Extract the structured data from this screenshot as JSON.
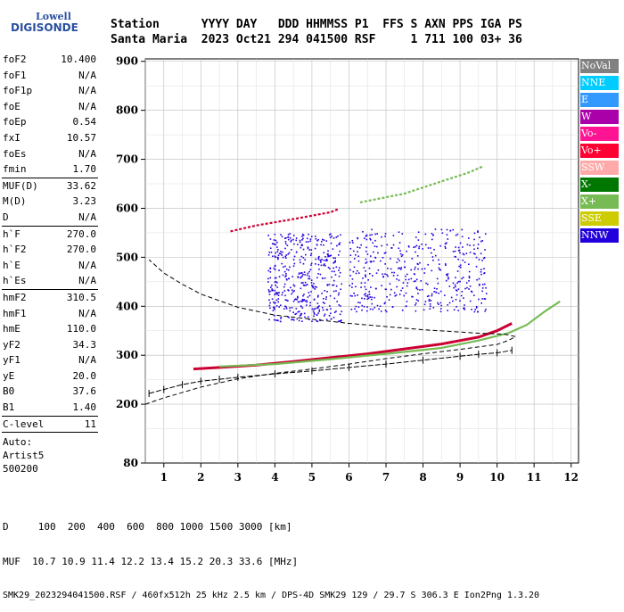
{
  "logo": {
    "line1": "Lowell",
    "line2": "DIGISONDE"
  },
  "header": {
    "row1": "Station      YYYY DAY   DDD HHMMSS P1  FFS S AXN PPS IGA PS",
    "row2": "Santa Maria  2023 Oct21 294 041500 RSF     1 711 100 03+ 36"
  },
  "params": {
    "group1": [
      {
        "label": "foF2",
        "value": "10.400"
      },
      {
        "label": "foF1",
        "value": "N/A"
      },
      {
        "label": "foF1p",
        "value": "N/A"
      },
      {
        "label": "foE",
        "value": "N/A"
      },
      {
        "label": "foEp",
        "value": "0.54"
      },
      {
        "label": "fxI",
        "value": "10.57"
      },
      {
        "label": "foEs",
        "value": "N/A"
      },
      {
        "label": "fmin",
        "value": "1.70"
      }
    ],
    "group2": [
      {
        "label": "MUF(D)",
        "value": "33.62"
      },
      {
        "label": "M(D)",
        "value": "3.23"
      },
      {
        "label": "D",
        "value": "N/A"
      }
    ],
    "group3": [
      {
        "label": "h`F",
        "value": "270.0"
      },
      {
        "label": "h`F2",
        "value": "270.0"
      },
      {
        "label": "h`E",
        "value": "N/A"
      },
      {
        "label": "h`Es",
        "value": "N/A"
      }
    ],
    "group4": [
      {
        "label": "hmF2",
        "value": "310.5"
      },
      {
        "label": "hmF1",
        "value": "N/A"
      },
      {
        "label": "hmE",
        "value": "110.0"
      },
      {
        "label": "yF2",
        "value": "34.3"
      },
      {
        "label": "yF1",
        "value": "N/A"
      },
      {
        "label": "yE",
        "value": "20.0"
      },
      {
        "label": "B0",
        "value": "37.6"
      },
      {
        "label": "B1",
        "value": "1.40"
      }
    ],
    "group5": [
      {
        "label": "C-level",
        "value": "11"
      }
    ],
    "auto": [
      "Auto:",
      "Artist5",
      "500200"
    ]
  },
  "legend": [
    {
      "label": "NoVal",
      "color": "#808080"
    },
    {
      "label": "NNE",
      "color": "#00ccff"
    },
    {
      "label": "E",
      "color": "#3399ff"
    },
    {
      "label": "W",
      "color": "#aa00aa"
    },
    {
      "label": "Vo-",
      "color": "#ff1493"
    },
    {
      "label": "Vo+",
      "color": "#ff0033"
    },
    {
      "label": "SSW",
      "color": "#ffaaaa"
    },
    {
      "label": "X-",
      "color": "#007700"
    },
    {
      "label": "X+",
      "color": "#77bb55"
    },
    {
      "label": "SSE",
      "color": "#cccc00"
    },
    {
      "label": "NNW",
      "color": "#2200dd"
    }
  ],
  "footer": {
    "line1": "D     100  200  400  600  800 1000 1500 3000 [km]",
    "line2": "MUF  10.7 10.9 11.4 12.2 13.4 15.2 20.3 33.6 [MHz]",
    "line3": "SMK29_2023294041500.RSF / 460fx512h 25 kHz 2.5 km / DPS-4D SMK29 129 / 29.7 S 306.3 E Ion2Png 1.3.20"
  },
  "chart_data": {
    "type": "scatter",
    "xlim": [
      0.5,
      12.2
    ],
    "ylim": [
      80,
      905
    ],
    "x_ticks": [
      1,
      2,
      3,
      4,
      5,
      6,
      7,
      8,
      9,
      10,
      11,
      12
    ],
    "y_ticks": [
      80,
      200,
      300,
      400,
      500,
      600,
      700,
      800,
      900
    ],
    "grid": true,
    "series": [
      {
        "kind": "o-trace",
        "color": "#cc0033",
        "x": [
          1.8,
          2.5,
          3.5,
          4.5,
          5.5,
          6.5,
          7.5,
          8.5,
          9.5,
          10.0,
          10.4
        ],
        "y": [
          272,
          275,
          280,
          287,
          295,
          303,
          313,
          323,
          337,
          350,
          365
        ]
      },
      {
        "kind": "x-trace",
        "color": "#77bb55",
        "x": [
          2.5,
          4.0,
          5.5,
          7.0,
          8.5,
          9.5,
          10.3,
          10.8,
          11.3,
          11.7
        ],
        "y": [
          277,
          282,
          292,
          303,
          315,
          330,
          345,
          362,
          390,
          410
        ]
      },
      {
        "kind": "multi-hop",
        "color": "#cc0033",
        "x": [
          2.8,
          3.5,
          4.5,
          5.5,
          5.7
        ],
        "y": [
          553,
          565,
          578,
          592,
          598
        ]
      },
      {
        "kind": "multi-hop-x",
        "color": "#77bb55",
        "x": [
          6.3,
          7.5,
          8.5,
          9.2,
          9.6
        ],
        "y": [
          612,
          630,
          655,
          672,
          685
        ]
      },
      {
        "kind": "profile-hplus",
        "color": "#000000",
        "x": [
          0.6,
          1.0,
          1.5,
          2.0,
          2.5,
          3.0,
          4.0,
          5.0,
          6.0,
          7.0,
          8.0,
          9.0,
          9.5,
          10.0,
          10.4
        ],
        "y": [
          222,
          230,
          240,
          247,
          251,
          255,
          262,
          268,
          275,
          282,
          290,
          298,
          302,
          305,
          310
        ]
      },
      {
        "kind": "profile-dashed",
        "color": "#000000",
        "x": [
          0.5,
          1.0,
          2.0,
          3.0,
          4.0,
          5.0,
          6.0,
          7.0,
          8.0,
          9.0,
          10.0,
          10.3,
          10.5,
          10.2,
          9.5,
          8.0,
          6.0,
          4.0,
          3.0,
          2.0,
          1.5,
          1.0,
          0.6
        ],
        "y": [
          200,
          213,
          235,
          252,
          263,
          272,
          282,
          293,
          303,
          312,
          322,
          330,
          338,
          343,
          345,
          352,
          365,
          382,
          398,
          425,
          445,
          468,
          495
        ]
      }
    ],
    "clusters": [
      {
        "color": "#2200dd",
        "x": [
          3.8,
          5.8
        ],
        "y": [
          370,
          550
        ]
      },
      {
        "color": "#2200dd",
        "x": [
          6.0,
          9.7
        ],
        "y": [
          390,
          560
        ]
      }
    ]
  }
}
